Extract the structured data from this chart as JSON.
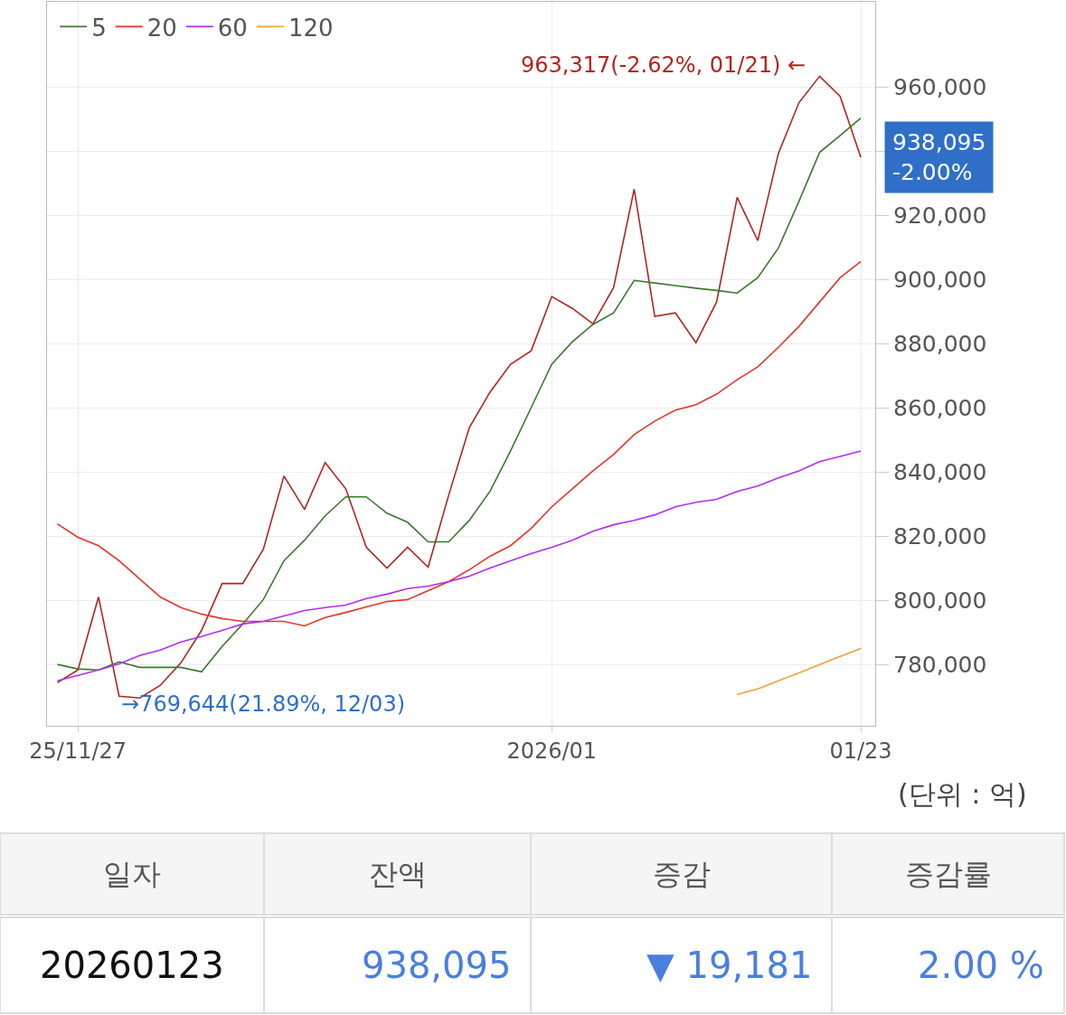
{
  "chart_data": {
    "type": "line",
    "categories": [
      null,
      "25/11/27",
      null,
      null,
      null,
      null,
      null,
      null,
      null,
      null,
      null,
      null,
      null,
      null,
      null,
      null,
      null,
      null,
      null,
      null,
      null,
      null,
      null,
      null,
      "2026/01",
      null,
      null,
      null,
      null,
      null,
      null,
      null,
      null,
      null,
      null,
      null,
      null,
      null,
      null,
      "01/23"
    ],
    "series": [
      {
        "color": "#b3251f",
        "values": [
          774400,
          778400,
          801100,
          770200,
          769644,
          773600,
          780600,
          790700,
          805300,
          805300,
          816000,
          838800,
          828400,
          843000,
          834800,
          816600,
          810100,
          816600,
          810400,
          832900,
          853900,
          864900,
          873600,
          877800,
          894700,
          891000,
          886200,
          897500,
          928100,
          888500,
          889600,
          880300,
          893000,
          925600,
          912100,
          939300,
          955100,
          963317,
          957000,
          938095
        ]
      },
      {
        "name": "5",
        "color": "#3a7a2e",
        "values": [
          780100,
          778700,
          778400,
          780900,
          779200,
          779200,
          779200,
          777800,
          785700,
          792700,
          800300,
          812400,
          818800,
          826400,
          832300,
          832300,
          827200,
          824400,
          818300,
          818300,
          825000,
          834000,
          846600,
          860100,
          873600,
          880600,
          886000,
          889600,
          899700,
          898900,
          898100,
          897300,
          896600,
          895800,
          900600,
          909800,
          924400,
          939600,
          944900,
          950300
        ]
      },
      {
        "name": "20",
        "color": "#e3372e",
        "values": [
          823900,
          819700,
          817100,
          812400,
          806700,
          801100,
          797800,
          795800,
          794400,
          793500,
          793500,
          793500,
          792100,
          794700,
          796300,
          798000,
          799700,
          800300,
          803100,
          805900,
          809600,
          813800,
          817100,
          822500,
          829200,
          834800,
          840400,
          845500,
          851700,
          855900,
          859300,
          861000,
          864300,
          868800,
          872800,
          878900,
          885400,
          893000,
          900600,
          905600
        ]
      },
      {
        "name": "60",
        "color": "#b12ef0",
        "values": [
          775000,
          776700,
          778400,
          780300,
          782900,
          784600,
          787100,
          788800,
          790700,
          792700,
          793500,
          795200,
          796900,
          797800,
          798600,
          800600,
          802000,
          803700,
          804500,
          805900,
          807600,
          810100,
          812400,
          814600,
          816600,
          818800,
          821600,
          823600,
          825000,
          826700,
          829200,
          830600,
          831500,
          834000,
          835700,
          838200,
          840400,
          843300,
          844900,
          846600
        ]
      },
      {
        "name": "120",
        "color": "#f0a23a",
        "values": [
          null,
          null,
          null,
          null,
          null,
          null,
          null,
          null,
          null,
          null,
          null,
          null,
          null,
          null,
          null,
          null,
          null,
          null,
          null,
          null,
          null,
          null,
          null,
          null,
          null,
          null,
          null,
          null,
          null,
          null,
          null,
          null,
          null,
          770800,
          772500,
          775000,
          777500,
          780100,
          782600,
          785100
        ]
      }
    ],
    "ylim": [
      761000,
      986500
    ],
    "yticks": [
      {
        "value": 780000,
        "label": "780,000"
      },
      {
        "value": 800000,
        "label": "800,000"
      },
      {
        "value": 820000,
        "label": "820,000"
      },
      {
        "value": 840000,
        "label": "840,000"
      },
      {
        "value": 860000,
        "label": "860,000"
      },
      {
        "value": 880000,
        "label": "880,000"
      },
      {
        "value": 900000,
        "label": "900,000"
      },
      {
        "value": 920000,
        "label": "920,000"
      },
      {
        "value": 940000,
        "label": null
      },
      {
        "value": 960000,
        "label": "960,000"
      }
    ],
    "grid": true,
    "legend": "top left",
    "marker": "none",
    "line_style": "solid",
    "annotations": [
      "963,317(-2.62%, 01/21) ←",
      "→769,644(21.89%, 12/03)",
      "938,095\n-2.00%",
      "(단위 : 억)",
      "일자",
      "잔액",
      "증감",
      "증감률",
      "20260123",
      "938,095",
      "▼ 19,181",
      "2.00 %"
    ]
  }
}
